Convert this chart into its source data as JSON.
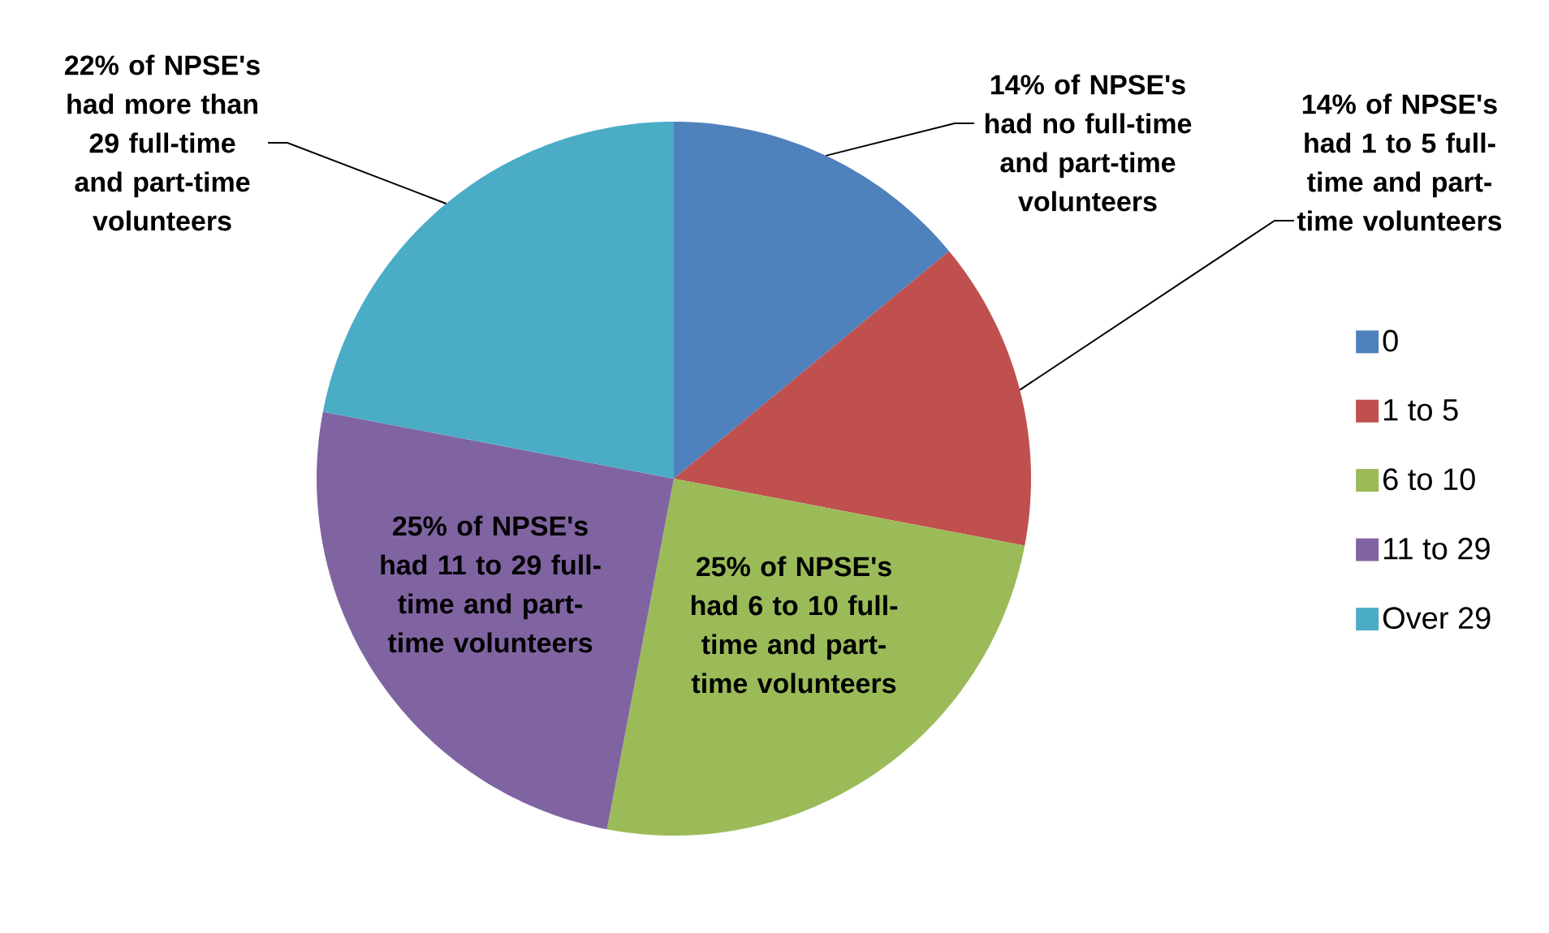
{
  "chart_data": {
    "type": "pie",
    "categories": [
      "0",
      "1 to 5",
      "6 to 10",
      "11 to 29",
      "Over 29"
    ],
    "values": [
      14,
      14,
      25,
      25,
      22
    ],
    "colors": [
      "#4f81bd",
      "#c0504d",
      "#9bbb59",
      "#8064a2",
      "#4bacc6"
    ],
    "legend": "right",
    "annotations": [
      "14% of NPSE's had no full-time and part-time volunteers",
      "14% of NPSE's had 1 to 5 full-time and part-time volunteers",
      "25% of NPSE's had 6 to 10 full-time and part-time volunteers",
      "25% of NPSE's had 11 to 29 full-time and part-time volunteers",
      "22% of NPSE's had more than 29 full-time and part-time volunteers"
    ]
  }
}
